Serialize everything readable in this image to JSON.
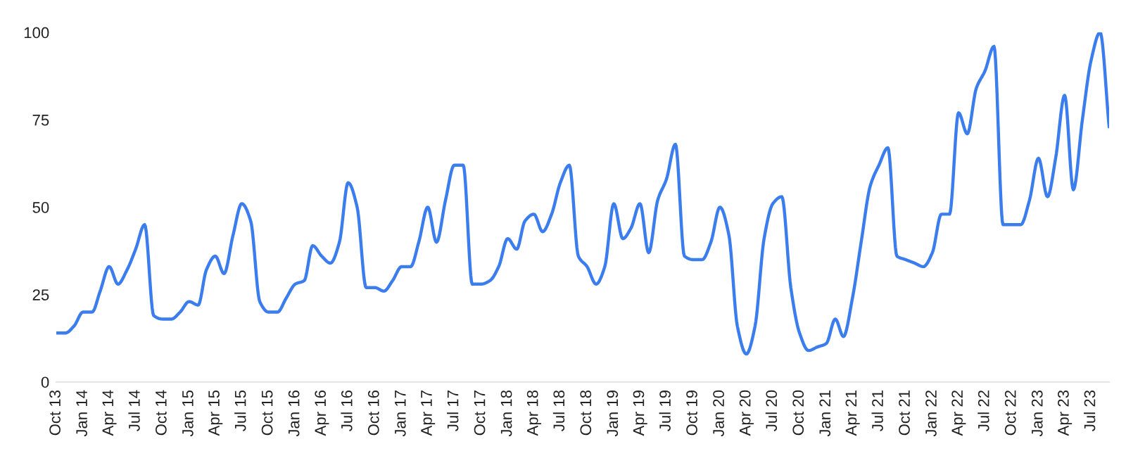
{
  "chart_data": {
    "type": "line",
    "x": [
      "2013-10",
      "2013-11",
      "2013-12",
      "2014-01",
      "2014-02",
      "2014-03",
      "2014-04",
      "2014-05",
      "2014-06",
      "2014-07",
      "2014-08",
      "2014-09",
      "2014-10",
      "2014-11",
      "2014-12",
      "2015-01",
      "2015-02",
      "2015-03",
      "2015-04",
      "2015-05",
      "2015-06",
      "2015-07",
      "2015-08",
      "2015-09",
      "2015-10",
      "2015-11",
      "2015-12",
      "2016-01",
      "2016-02",
      "2016-03",
      "2016-04",
      "2016-05",
      "2016-06",
      "2016-07",
      "2016-08",
      "2016-09",
      "2016-10",
      "2016-11",
      "2016-12",
      "2017-01",
      "2017-02",
      "2017-03",
      "2017-04",
      "2017-05",
      "2017-06",
      "2017-07",
      "2017-08",
      "2017-09",
      "2017-10",
      "2017-11",
      "2017-12",
      "2018-01",
      "2018-02",
      "2018-03",
      "2018-04",
      "2018-05",
      "2018-06",
      "2018-07",
      "2018-08",
      "2018-09",
      "2018-10",
      "2018-11",
      "2018-12",
      "2019-01",
      "2019-02",
      "2019-03",
      "2019-04",
      "2019-05",
      "2019-06",
      "2019-07",
      "2019-08",
      "2019-09",
      "2019-10",
      "2019-11",
      "2019-12",
      "2020-01",
      "2020-02",
      "2020-03",
      "2020-04",
      "2020-05",
      "2020-06",
      "2020-07",
      "2020-08",
      "2020-09",
      "2020-10",
      "2020-11",
      "2020-12",
      "2021-01",
      "2021-02",
      "2021-03",
      "2021-04",
      "2021-05",
      "2021-06",
      "2021-07",
      "2021-08",
      "2021-09",
      "2021-10",
      "2021-11",
      "2021-12",
      "2022-01",
      "2022-02",
      "2022-03",
      "2022-04",
      "2022-05",
      "2022-06",
      "2022-07",
      "2022-08",
      "2022-09",
      "2022-10",
      "2022-11",
      "2022-12",
      "2023-01",
      "2023-02",
      "2023-03",
      "2023-04",
      "2023-05",
      "2023-06",
      "2023-07",
      "2023-08",
      "2023-09"
    ],
    "series": [
      {
        "color": "#3b7ded",
        "values": [
          14,
          14,
          16,
          20,
          20,
          26,
          33,
          28,
          32,
          38,
          45,
          19,
          18,
          18,
          20,
          23,
          22,
          32,
          36,
          31,
          42,
          51,
          46,
          23,
          20,
          20,
          24,
          28,
          29,
          39,
          36,
          34,
          40,
          57,
          50,
          27,
          27,
          26,
          29,
          33,
          33,
          40,
          50,
          40,
          52,
          62,
          62,
          28,
          28,
          29,
          33,
          41,
          38,
          46,
          48,
          43,
          48,
          57,
          62,
          36,
          33,
          28,
          33,
          51,
          41,
          44,
          51,
          37,
          52,
          58,
          68,
          36,
          35,
          35,
          40,
          50,
          42,
          16,
          8,
          16,
          41,
          51,
          53,
          27,
          14,
          9,
          10,
          11,
          18,
          13,
          24,
          40,
          56,
          62,
          67,
          36,
          35,
          34,
          33,
          37,
          48,
          48,
          77,
          71,
          84,
          89,
          96,
          45,
          45,
          45,
          52,
          64,
          53,
          64,
          82,
          55,
          75,
          92,
          100,
          73
        ]
      }
    ],
    "ylim": [
      0,
      100
    ],
    "yticks": [
      0,
      25,
      50,
      75,
      100
    ],
    "xlim": [
      "2013-10",
      "2023-09"
    ],
    "xticks": [
      {
        "value": "2013-10",
        "label": "Oct 13"
      },
      {
        "value": "2014-01",
        "label": "Jan 14"
      },
      {
        "value": "2014-04",
        "label": "Apr 14"
      },
      {
        "value": "2014-07",
        "label": "Jul 14"
      },
      {
        "value": "2014-10",
        "label": "Oct 14"
      },
      {
        "value": "2015-01",
        "label": "Jan 15"
      },
      {
        "value": "2015-04",
        "label": "Apr 15"
      },
      {
        "value": "2015-07",
        "label": "Jul 15"
      },
      {
        "value": "2015-10",
        "label": "Oct 15"
      },
      {
        "value": "2016-01",
        "label": "Jan 16"
      },
      {
        "value": "2016-04",
        "label": "Apr 16"
      },
      {
        "value": "2016-07",
        "label": "Jul 16"
      },
      {
        "value": "2016-10",
        "label": "Oct 16"
      },
      {
        "value": "2017-01",
        "label": "Jan 17"
      },
      {
        "value": "2017-04",
        "label": "Apr 17"
      },
      {
        "value": "2017-07",
        "label": "Jul 17"
      },
      {
        "value": "2017-10",
        "label": "Oct 17"
      },
      {
        "value": "2018-01",
        "label": "Jan 18"
      },
      {
        "value": "2018-04",
        "label": "Apr 18"
      },
      {
        "value": "2018-07",
        "label": "Jul 18"
      },
      {
        "value": "2018-10",
        "label": "Oct 18"
      },
      {
        "value": "2019-01",
        "label": "Jan 19"
      },
      {
        "value": "2019-04",
        "label": "Apr 19"
      },
      {
        "value": "2019-07",
        "label": "Jul 19"
      },
      {
        "value": "2019-10",
        "label": "Oct 19"
      },
      {
        "value": "2020-01",
        "label": "Jan 20"
      },
      {
        "value": "2020-04",
        "label": "Apr 20"
      },
      {
        "value": "2020-07",
        "label": "Jul 20"
      },
      {
        "value": "2020-10",
        "label": "Oct 20"
      },
      {
        "value": "2021-01",
        "label": "Jan 21"
      },
      {
        "value": "2021-04",
        "label": "Apr 21"
      },
      {
        "value": "2021-07",
        "label": "Jul 21"
      },
      {
        "value": "2021-10",
        "label": "Oct 21"
      },
      {
        "value": "2022-01",
        "label": "Jan 22"
      },
      {
        "value": "2022-04",
        "label": "Apr 22"
      },
      {
        "value": "2022-07",
        "label": "Jul 22"
      },
      {
        "value": "2022-10",
        "label": "Oct 22"
      },
      {
        "value": "2023-01",
        "label": "Jan 23"
      },
      {
        "value": "2023-04",
        "label": "Apr 23"
      },
      {
        "value": "2023-07",
        "label": "Jul 23"
      }
    ],
    "grid": false,
    "legend": false,
    "marker": "none",
    "line_style": "solid"
  }
}
